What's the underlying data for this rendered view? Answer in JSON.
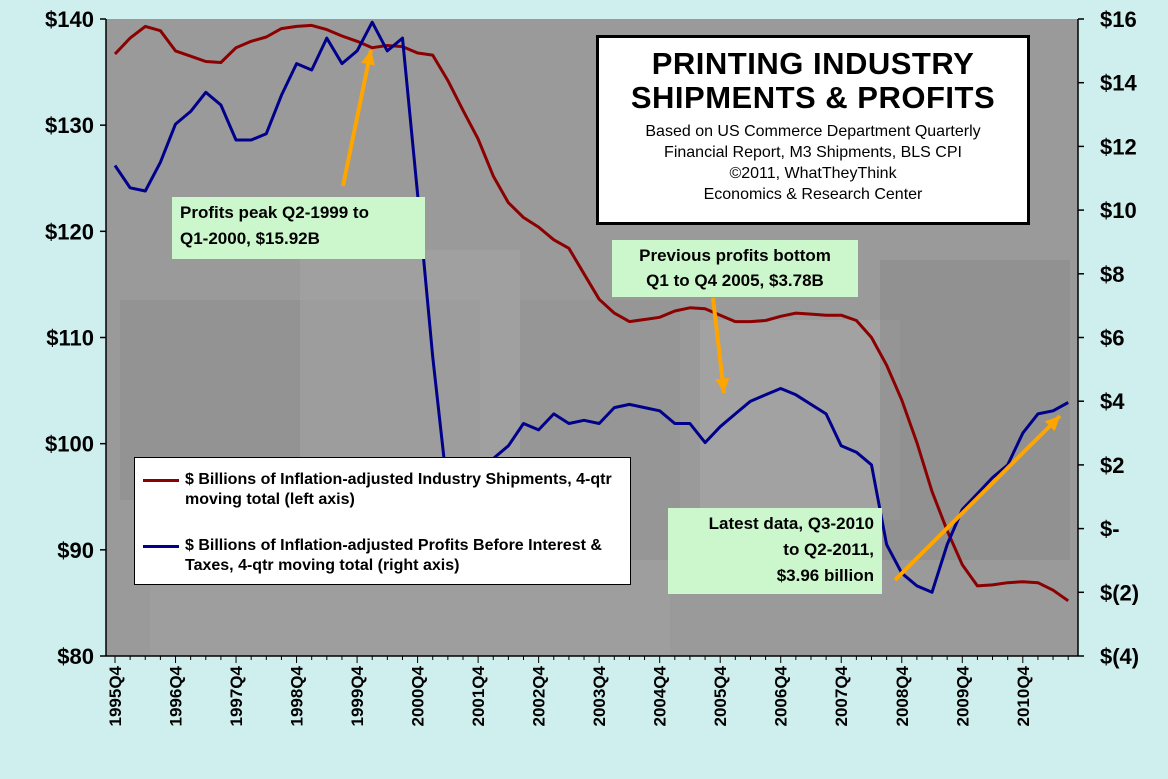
{
  "chart_data": {
    "type": "line",
    "title": "PRINTING INDUSTRY SHIPMENTS & PROFITS",
    "subtitle_lines": [
      "Based on US Commerce Department  Quarterly",
      "Financial Report,  M3 Shipments,  BLS CPI",
      "©2011,  WhatTheyThink",
      "Economics  &  Research  Center"
    ],
    "title_lines": [
      "PRINTING INDUSTRY",
      "SHIPMENTS & PROFITS"
    ],
    "x_labels": [
      "1995Q4",
      "1996Q4",
      "1997Q4",
      "1998Q4",
      "1999Q4",
      "2000Q4",
      "2001Q4",
      "2002Q4",
      "2003Q4",
      "2004Q4",
      "2005Q4",
      "2006Q4",
      "2007Q4",
      "2008Q4",
      "2009Q4",
      "2010Q4"
    ],
    "y_left": {
      "range": [
        80,
        140
      ],
      "ticks": [
        "$80",
        "$90",
        "$100",
        "$110",
        "$120",
        "$130",
        "$140"
      ]
    },
    "y_right": {
      "range": [
        -4,
        16
      ],
      "ticks": [
        "$(4)",
        "$(2)",
        "$-",
        "$2",
        "$4",
        "$6",
        "$8",
        "$10",
        "$12",
        "$14",
        "$16"
      ]
    },
    "series": [
      {
        "name": "$ Billions of Inflation-adjusted Industry Shipments, 4-qtr moving total (left axis)",
        "axis": "left",
        "color": "#8b0000",
        "values": [
          136.7,
          138.2,
          139.3,
          138.9,
          137.0,
          136.5,
          136.0,
          135.9,
          137.3,
          137.9,
          138.3,
          139.1,
          139.3,
          139.4,
          139.0,
          138.4,
          137.9,
          137.3,
          137.5,
          137.4,
          136.8,
          136.6,
          134.2,
          131.4,
          128.7,
          125.2,
          122.7,
          121.3,
          120.4,
          119.2,
          118.4,
          116.0,
          113.6,
          112.3,
          111.5,
          111.7,
          111.9,
          112.5,
          112.8,
          112.7,
          112.1,
          111.5,
          111.5,
          111.6,
          112.0,
          112.3,
          112.2,
          112.1,
          112.1,
          111.6,
          110.0,
          107.4,
          104.1,
          100.1,
          95.5,
          91.8,
          88.6,
          86.6,
          86.7,
          86.9,
          87.0,
          86.9,
          86.2,
          85.2
        ]
      },
      {
        "name": "$ Billions of Inflation-adjusted Profits Before Interest & Taxes, 4-qtr moving total (right axis)",
        "axis": "right",
        "color": "#00008b",
        "values": [
          11.4,
          10.7,
          10.6,
          11.5,
          12.7,
          13.1,
          13.7,
          13.3,
          12.2,
          12.2,
          12.4,
          13.6,
          14.6,
          14.4,
          15.4,
          14.6,
          15.0,
          15.9,
          15.0,
          15.4,
          10.5,
          5.4,
          1.1,
          1.0,
          1.5,
          2.2,
          2.6,
          3.3,
          3.1,
          3.6,
          3.3,
          3.4,
          3.3,
          3.8,
          3.9,
          3.8,
          3.7,
          3.3,
          3.3,
          2.7,
          3.2,
          3.6,
          4.0,
          4.2,
          4.4,
          4.2,
          3.9,
          3.6,
          2.6,
          2.4,
          2.0,
          -0.5,
          -1.4,
          -1.8,
          -2.0,
          -0.5,
          0.6,
          1.1,
          1.6,
          2.0,
          3.0,
          3.6,
          3.7,
          3.96
        ]
      }
    ],
    "legend": [
      "$ Billions of Inflation-adjusted Industry Shipments, 4-qtr moving total (left axis)",
      "$ Billions of Inflation-adjusted Profits Before Interest & Taxes, 4-qtr moving total (right axis)"
    ],
    "annotations": [
      {
        "lines": [
          "Profits peak Q2-1999 to",
          "Q1-2000, $15.92B"
        ],
        "align": "left"
      },
      {
        "lines": [
          "Previous profits bottom",
          "Q1 to Q4 2005, $3.78B"
        ],
        "align": "center"
      },
      {
        "lines": [
          "Latest data, Q3-2010",
          "to Q2-2011,",
          "$3.96 billion"
        ],
        "align": "right"
      }
    ],
    "colors": {
      "background": "#cfefef",
      "plot_background": "#9a9a9a",
      "arrow": "#ffa500",
      "annotation_fill": "#ccf7cc"
    },
    "grid": false,
    "legend_position": "bottom-left"
  }
}
